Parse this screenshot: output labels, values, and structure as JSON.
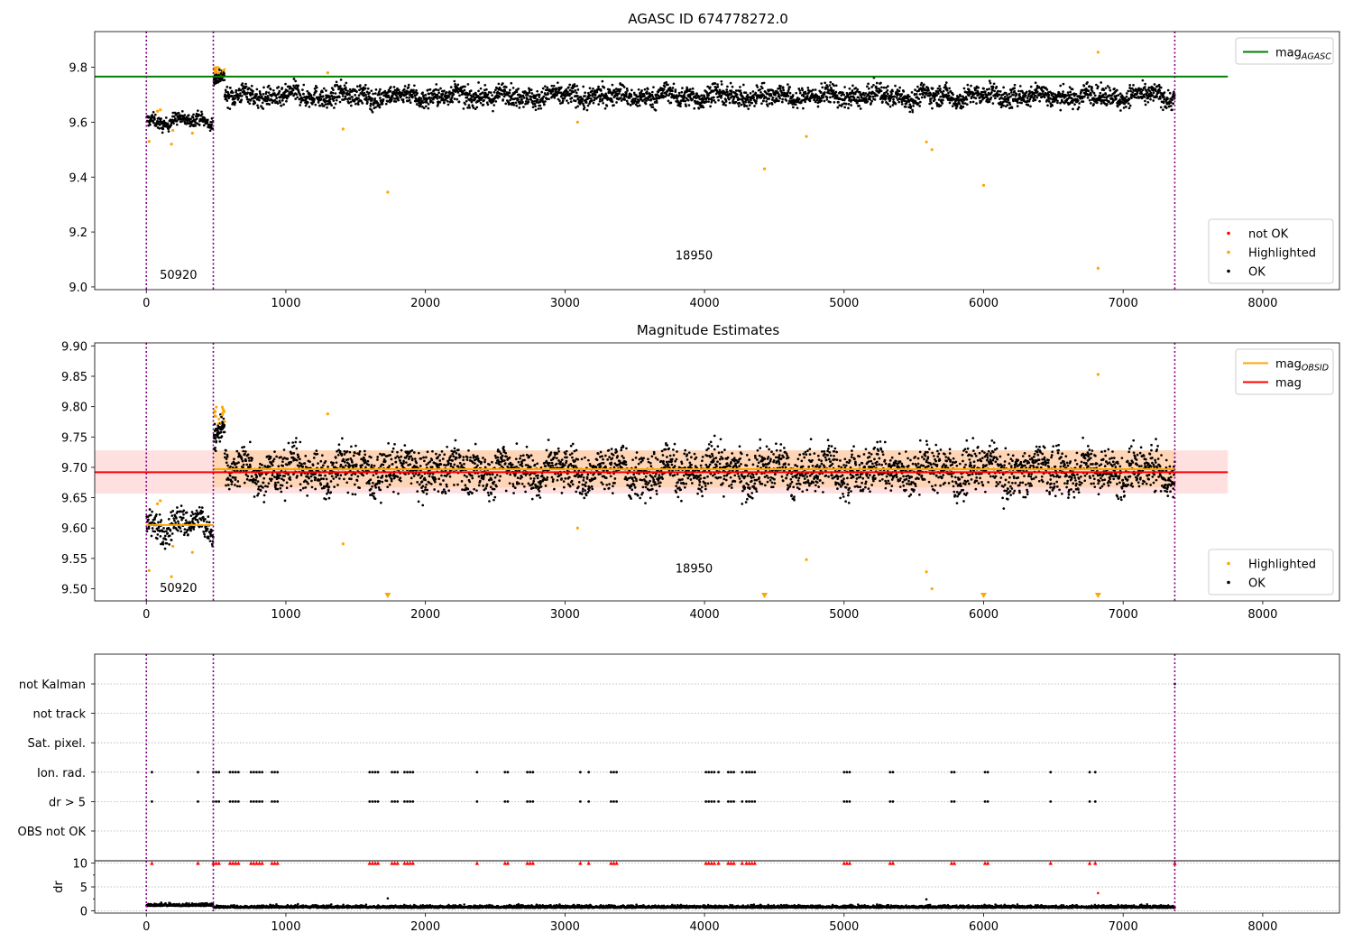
{
  "chart_data": [
    {
      "type": "scatter",
      "title": "AGASC ID 674778272.0",
      "xlim": [
        -370,
        8550
      ],
      "ylim": [
        8.99,
        9.93
      ],
      "xticks": [
        0,
        1000,
        2000,
        3000,
        4000,
        5000,
        6000,
        7000,
        8000
      ],
      "yticks": [
        9.0,
        9.2,
        9.4,
        9.6,
        9.8
      ],
      "ytick_format": 1,
      "obs_lines": [
        0,
        480,
        7370
      ],
      "obs_labels": [
        {
          "text": "50920",
          "x": 230,
          "y": 9.03
        },
        {
          "text": "18950",
          "x": 3925,
          "y": 9.1
        }
      ],
      "hlines": [
        {
          "name": "mag_AGASC",
          "y": 9.766,
          "x0": -370,
          "x1": 7750,
          "color": "#008000"
        }
      ],
      "segments": [
        {
          "x0": 0,
          "x1": 480,
          "level": 9.605,
          "spread": 0.012,
          "n": 220
        },
        {
          "x0": 480,
          "x1": 560,
          "level": 9.765,
          "spread": 0.01,
          "n": 60,
          "highlight_top": 9.8
        },
        {
          "x0": 560,
          "x1": 7370,
          "level": 9.695,
          "spread": 0.018,
          "n": 3400
        }
      ],
      "highlighted_points": [
        {
          "x": 20,
          "y": 9.53
        },
        {
          "x": 80,
          "y": 9.64
        },
        {
          "x": 100,
          "y": 9.645
        },
        {
          "x": 180,
          "y": 9.52
        },
        {
          "x": 190,
          "y": 9.57
        },
        {
          "x": 330,
          "y": 9.56
        },
        {
          "x": 1300,
          "y": 9.78
        },
        {
          "x": 1410,
          "y": 9.575
        },
        {
          "x": 1730,
          "y": 9.345
        },
        {
          "x": 3090,
          "y": 9.6
        },
        {
          "x": 4430,
          "y": 9.43
        },
        {
          "x": 4730,
          "y": 9.548
        },
        {
          "x": 5590,
          "y": 9.528
        },
        {
          "x": 5630,
          "y": 9.5
        },
        {
          "x": 6000,
          "y": 9.37
        },
        {
          "x": 6820,
          "y": 9.855
        },
        {
          "x": 6820,
          "y": 9.068
        }
      ],
      "legends": [
        {
          "items": [
            {
              "name": "mag",
              "sub": "AGASC",
              "color": "#008000",
              "kind": "line"
            }
          ],
          "loc": "upper right"
        },
        {
          "items": [
            {
              "name": "not OK",
              "color": "#ff0000",
              "kind": "dot"
            },
            {
              "name": "Highlighted",
              "color": "#ffa500",
              "kind": "dot"
            },
            {
              "name": "OK",
              "color": "#000000",
              "kind": "dot"
            }
          ],
          "loc": "lower right"
        }
      ]
    },
    {
      "type": "scatter",
      "title": "Magnitude Estimates",
      "xlim": [
        -370,
        8550
      ],
      "ylim": [
        9.48,
        9.905
      ],
      "xticks": [
        0,
        1000,
        2000,
        3000,
        4000,
        5000,
        6000,
        7000,
        8000
      ],
      "yticks": [
        9.5,
        9.55,
        9.6,
        9.65,
        9.7,
        9.75,
        9.8,
        9.85,
        9.9
      ],
      "ytick_format": 2,
      "obs_lines": [
        0,
        480,
        7370
      ],
      "obs_labels": [
        {
          "text": "50920",
          "x": 230,
          "y": 9.495
        },
        {
          "text": "18950",
          "x": 3925,
          "y": 9.527
        }
      ],
      "bands": [
        {
          "x0": -370,
          "x1": 7750,
          "y0": 9.657,
          "y1": 9.728,
          "color": "rgba(255,0,0,0.12)"
        },
        {
          "x0": 480,
          "x1": 7370,
          "y0": 9.667,
          "y1": 9.728,
          "color": "rgba(255,165,0,0.18)"
        }
      ],
      "hlines": [
        {
          "name": "mag",
          "y": 9.692,
          "x0": -370,
          "x1": 7750,
          "color": "#ff0000"
        },
        {
          "name": "mag_OBSID",
          "y": 9.605,
          "x0": 0,
          "x1": 480,
          "color": "#ffa500"
        },
        {
          "name": "mag_OBSID",
          "y": 9.697,
          "x0": 480,
          "x1": 7370,
          "color": "#ffa500"
        }
      ],
      "segments": [
        {
          "x0": 0,
          "x1": 480,
          "level": 9.605,
          "spread": 0.012,
          "n": 220
        },
        {
          "x0": 480,
          "x1": 560,
          "level": 9.765,
          "spread": 0.01,
          "n": 60,
          "highlight_top": 9.8
        },
        {
          "x0": 560,
          "x1": 7370,
          "level": 9.695,
          "spread": 0.018,
          "n": 3400
        }
      ],
      "highlighted_points": [
        {
          "x": 20,
          "y": 9.53
        },
        {
          "x": 80,
          "y": 9.64
        },
        {
          "x": 100,
          "y": 9.645
        },
        {
          "x": 180,
          "y": 9.52
        },
        {
          "x": 190,
          "y": 9.57
        },
        {
          "x": 330,
          "y": 9.56
        },
        {
          "x": 1300,
          "y": 9.788
        },
        {
          "x": 1410,
          "y": 9.574
        },
        {
          "x": 3090,
          "y": 9.6
        },
        {
          "x": 4730,
          "y": 9.548
        },
        {
          "x": 5590,
          "y": 9.528
        },
        {
          "x": 5630,
          "y": 9.5
        },
        {
          "x": 6820,
          "y": 9.853
        }
      ],
      "offscale_markers": [
        1730,
        4430,
        6000,
        6820
      ],
      "legends": [
        {
          "items": [
            {
              "name": "mag",
              "sub": "OBSID",
              "color": "#ffa500",
              "kind": "line"
            },
            {
              "name": "mag",
              "color": "#ff0000",
              "kind": "line"
            }
          ],
          "loc": "upper right"
        },
        {
          "items": [
            {
              "name": "Highlighted",
              "color": "#ffa500",
              "kind": "dot"
            },
            {
              "name": "OK",
              "color": "#000000",
              "kind": "dot"
            }
          ],
          "loc": "lower right"
        }
      ]
    },
    {
      "type": "scatter",
      "xlim": [
        -370,
        8550
      ],
      "xticks": [
        0,
        1000,
        2000,
        3000,
        4000,
        5000,
        6000,
        7000,
        8000
      ],
      "flag_rows": [
        "not Kalman",
        "not track",
        "Sat. pixel.",
        "Ion. rad.",
        "dr > 5",
        "OBS not OK"
      ],
      "flag_events": {
        "Ion. rad.": [
          40,
          370,
          480,
          500,
          520,
          600,
          620,
          640,
          660,
          750,
          770,
          790,
          810,
          830,
          900,
          920,
          940,
          1600,
          1620,
          1640,
          1660,
          1760,
          1780,
          1800,
          1850,
          1870,
          1890,
          1910,
          2370,
          2570,
          2590,
          2730,
          2750,
          2770,
          3110,
          3170,
          3330,
          3350,
          3370,
          4010,
          4030,
          4050,
          4070,
          4100,
          4170,
          4190,
          4210,
          4270,
          4300,
          4320,
          4340,
          4360,
          5000,
          5020,
          5040,
          5330,
          5350,
          5770,
          5790,
          6010,
          6030,
          6480,
          6760,
          6800
        ],
        "dr > 5": [
          40,
          370,
          480,
          500,
          520,
          600,
          620,
          640,
          660,
          750,
          770,
          790,
          810,
          830,
          900,
          920,
          940,
          1600,
          1620,
          1640,
          1660,
          1760,
          1780,
          1800,
          1850,
          1870,
          1890,
          1910,
          2370,
          2570,
          2590,
          2730,
          2750,
          2770,
          3110,
          3170,
          3330,
          3350,
          3370,
          4010,
          4030,
          4050,
          4070,
          4100,
          4170,
          4190,
          4210,
          4270,
          4300,
          4320,
          4340,
          4360,
          5000,
          5020,
          5040,
          5330,
          5350,
          5770,
          5790,
          6010,
          6030,
          6480,
          6760,
          6800
        ]
      },
      "obs_lines": [
        0,
        480,
        7370
      ]
    },
    {
      "type": "scatter",
      "ylabel": "dr",
      "xlim": [
        -370,
        8550
      ],
      "ylim": [
        -0.5,
        10.5
      ],
      "xticks": [
        0,
        1000,
        2000,
        3000,
        4000,
        5000,
        6000,
        7000,
        8000
      ],
      "yticks": [
        0,
        5,
        10
      ],
      "dr_clipped_x": [
        40,
        370,
        480,
        500,
        520,
        600,
        620,
        640,
        660,
        750,
        770,
        790,
        810,
        830,
        900,
        920,
        940,
        1600,
        1620,
        1640,
        1660,
        1760,
        1780,
        1800,
        1850,
        1870,
        1890,
        1910,
        2370,
        2570,
        2590,
        2730,
        2750,
        2770,
        3110,
        3170,
        3330,
        3350,
        3370,
        4010,
        4030,
        4050,
        4070,
        4100,
        4170,
        4190,
        4210,
        4270,
        4300,
        4320,
        4340,
        4360,
        5000,
        5020,
        5040,
        5330,
        5350,
        5770,
        5790,
        6010,
        6030,
        6480,
        6760,
        6800,
        7370
      ],
      "dr_outliers": [
        {
          "x": 1730,
          "y": 2.6
        },
        {
          "x": 5590,
          "y": 2.4
        },
        {
          "x": 6820,
          "y": 3.7
        }
      ],
      "dr_level": 0.6,
      "obs_lines": [
        0,
        480,
        7370
      ]
    }
  ]
}
